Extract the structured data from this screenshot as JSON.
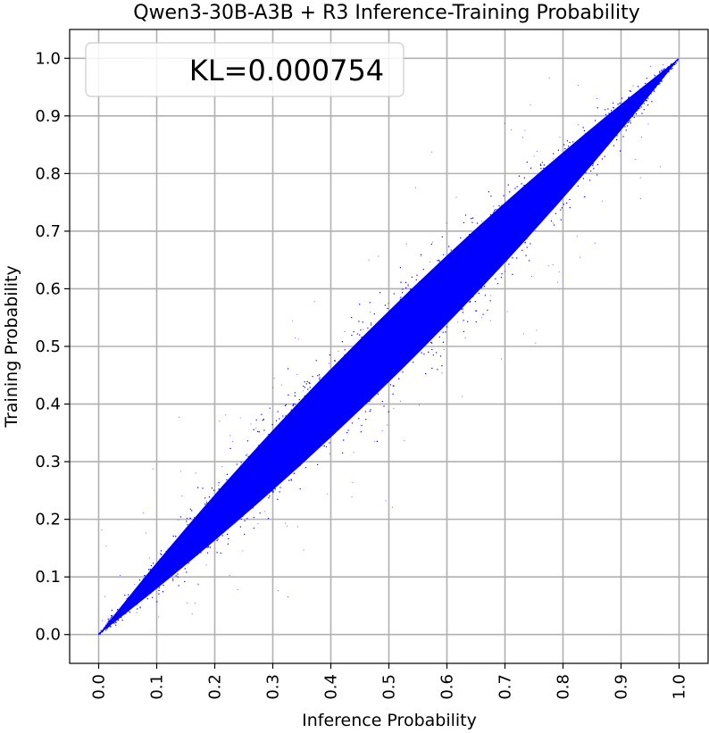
{
  "chart_data": {
    "type": "scatter",
    "title": "Qwen3-30B-A3B + R3 Inference-Training Probability",
    "xlabel": "Inference Probability",
    "ylabel": "Training Probability",
    "xlim": [
      -0.05,
      1.05
    ],
    "ylim": [
      -0.05,
      1.05
    ],
    "xticks": [
      "0.0",
      "0.1",
      "0.2",
      "0.3",
      "0.4",
      "0.5",
      "0.6",
      "0.7",
      "0.8",
      "0.9",
      "1.0"
    ],
    "yticks": [
      "0.0",
      "0.1",
      "0.2",
      "0.3",
      "0.4",
      "0.5",
      "0.6",
      "0.7",
      "0.8",
      "0.9",
      "1.0"
    ],
    "grid": true,
    "legend_placement": "top-left",
    "annotation": "KL=0.000754",
    "point_color": "#0000ff",
    "distribution": {
      "description_points_along_diagonal": true,
      "band_halfwidth_at_center": 0.1,
      "range": [
        0.0,
        1.0
      ]
    }
  }
}
